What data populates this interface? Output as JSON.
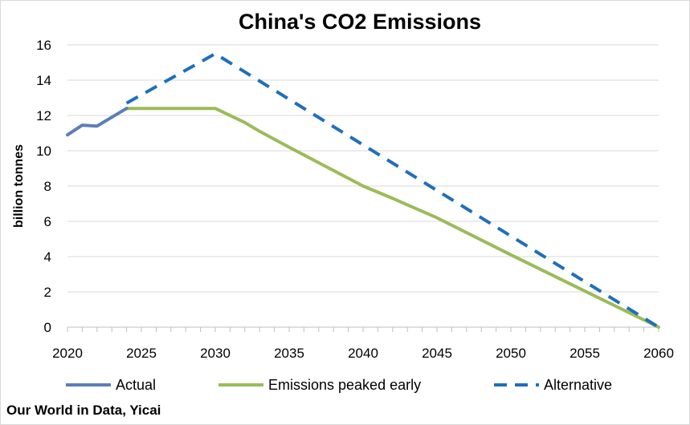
{
  "chart_data": {
    "type": "line",
    "title": "China's CO2 Emissions",
    "xlabel": "",
    "ylabel": "billion tonnes",
    "xlim": [
      2020,
      2060
    ],
    "ylim": [
      0,
      16
    ],
    "x_ticks": [
      2020,
      2025,
      2030,
      2035,
      2040,
      2045,
      2050,
      2055,
      2060
    ],
    "y_ticks": [
      0,
      2,
      4,
      6,
      8,
      10,
      12,
      14,
      16
    ],
    "grid": "horizontal",
    "legend_position": "bottom",
    "series": [
      {
        "name": "Actual",
        "color": "#5b7fb5",
        "style": "solid",
        "x": [
          2020,
          2021,
          2022,
          2023,
          2024
        ],
        "y": [
          10.9,
          11.45,
          11.4,
          11.9,
          12.4
        ]
      },
      {
        "name": "Emissions peaked early",
        "color": "#9bbb59",
        "style": "solid",
        "x": [
          2024,
          2030,
          2032,
          2033,
          2035,
          2040,
          2042,
          2045,
          2050,
          2055,
          2060
        ],
        "y": [
          12.4,
          12.4,
          11.6,
          11.1,
          10.2,
          8.0,
          7.3,
          6.2,
          4.1,
          2.05,
          0
        ]
      },
      {
        "name": "Alternative",
        "color": "#1f6fba",
        "style": "dashed",
        "x": [
          2024,
          2030,
          2060
        ],
        "y": [
          12.7,
          15.5,
          0
        ]
      }
    ]
  },
  "source": "Our World in Data, Yicai"
}
